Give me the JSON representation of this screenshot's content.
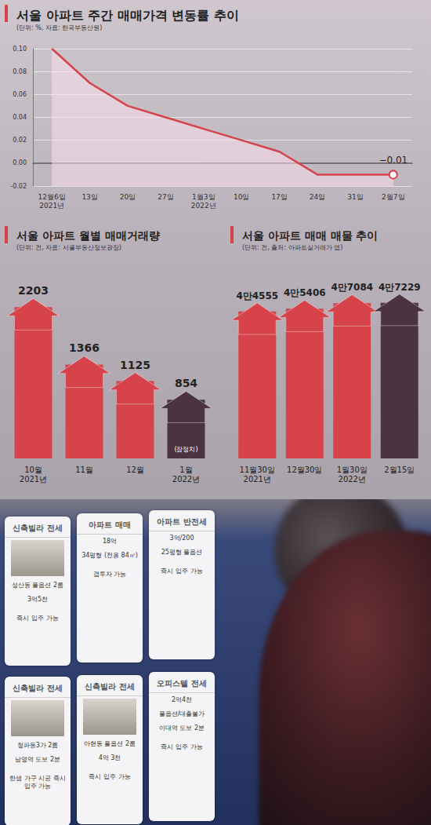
{
  "chart_data": [
    {
      "type": "line",
      "title": "서울 아파트 주간 매매가격 변동률 추이",
      "subtitle": "(단위: %, 자료: 한국부동산원)",
      "categories": [
        "12월6일\n2021년",
        "13일",
        "20일",
        "27일",
        "1월3일\n2022년",
        "10일",
        "17일",
        "24일",
        "31일",
        "2월7일"
      ],
      "values": [
        0.1,
        0.07,
        0.05,
        0.04,
        0.03,
        0.02,
        0.01,
        -0.01,
        -0.01,
        -0.01
      ],
      "data_labels": true,
      "value_labels": [
        null,
        null,
        null,
        null,
        null,
        null,
        null,
        null,
        null,
        "−0.01"
      ],
      "color": "#d6434b",
      "marker": "circle",
      "ylim": [
        -0.02,
        0.1
      ],
      "yticks": [
        {
          "value": -0.02,
          "label": "-0.02"
        },
        {
          "value": 0,
          "label": "0.00"
        },
        {
          "value": 0.02,
          "label": "0.02"
        },
        {
          "value": 0.04,
          "label": "0.04"
        },
        {
          "value": 0.06,
          "label": "0.06"
        },
        {
          "value": 0.08,
          "label": "0.08"
        },
        {
          "value": 0.1,
          "label": "0.10"
        }
      ],
      "grid": true
    },
    {
      "type": "bar",
      "title": "서울 아파트 월별 매매거래량",
      "subtitle": "(단위: 건, 자료: 서울부동산정보광장)",
      "categories": [
        "10월\n2021년",
        "11월",
        "12월",
        "1월\n2022년"
      ],
      "values": [
        2203,
        1366,
        1125,
        854
      ],
      "colors": [
        "#d6434b",
        "#d6434b",
        "#d6434b",
        "#4b3440"
      ],
      "data_labels": true,
      "annotations": [
        {
          "text": "(잠정치)",
          "category": "1월\n2022년"
        }
      ],
      "ylim": [
        0,
        2400
      ],
      "yticks": [
        0,
        2400
      ],
      "tick_labels": "x",
      "grid": false
    },
    {
      "type": "bar",
      "title": "서울 아파트 매매 매물 추이",
      "subtitle": "(단위: 건, 출처: 아파트실거래가 앱)",
      "categories": [
        "11월30일\n2021년",
        "12월30일",
        "1월30일\n2022년",
        "2월15일"
      ],
      "values": [
        44555,
        45406,
        47084,
        47229
      ],
      "value_labels": [
        "4만4555",
        "4만5406",
        "4만7084",
        "4만7229"
      ],
      "colors": [
        "#d6434b",
        "#d6434b",
        "#d6434b",
        "#4b3440"
      ],
      "data_labels": true,
      "ylim": [
        0,
        50000
      ],
      "yticks": [
        0,
        50000
      ],
      "tick_labels": "x",
      "grid": false
    }
  ],
  "photo": {
    "signs": [
      {
        "title": "신축빌라 전세",
        "lines": [
          "성산동 풀옵션 2룸",
          "3억5천"
        ],
        "image": true,
        "footer": "즉시 입주 가능"
      },
      {
        "title": "아파트 매매",
        "lines": [
          "18억",
          "34평형 (전용 84㎡)"
        ],
        "image": false,
        "footer": "갭투자 가능"
      },
      {
        "title": "아파트 반전세",
        "lines": [
          "3억/200",
          "25평형 풀옵션"
        ],
        "image": false,
        "footer": "즉시 입주 가능"
      },
      {
        "title": "신축빌라 전세",
        "lines": [
          "청파동3가 2룸",
          "남영역 도보 2분"
        ],
        "image": true,
        "footer": "한샘 가구 시공 즉시 입주 가능"
      },
      {
        "title": "신축빌라 전세",
        "lines": [
          "아현동 풀옵션 2룸",
          "4억 3천"
        ],
        "image": true,
        "footer": "즉시 입주 가능"
      },
      {
        "title": "오피스텔 전세",
        "lines": [
          "2억4천",
          "풀옵션/대출불가",
          "이대역 도보 2분"
        ],
        "image": false,
        "footer": "즉시 입주 가능"
      }
    ]
  }
}
